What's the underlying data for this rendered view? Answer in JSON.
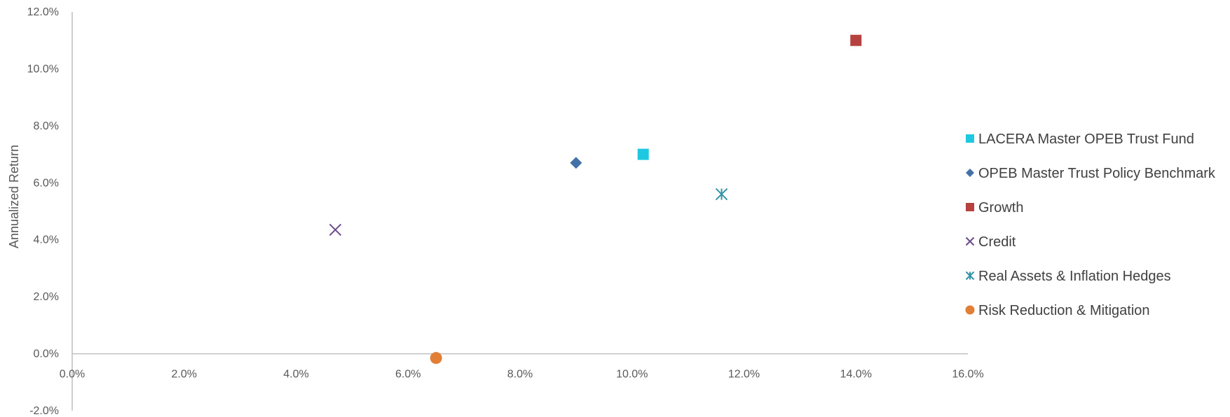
{
  "chart_data": {
    "type": "scatter",
    "title": "",
    "xlabel": "",
    "ylabel": "Annualized Return",
    "xlim": [
      0,
      16
    ],
    "ylim": [
      -2,
      12
    ],
    "x_ticks": [
      "0.0%",
      "2.0%",
      "4.0%",
      "6.0%",
      "8.0%",
      "10.0%",
      "12.0%",
      "14.0%",
      "16.0%"
    ],
    "y_ticks": [
      "-2.0%",
      "0.0%",
      "2.0%",
      "4.0%",
      "6.0%",
      "8.0%",
      "10.0%",
      "12.0%"
    ],
    "grid": false,
    "legend_position": "right",
    "series": [
      {
        "name": "LACERA Master OPEB Trust Fund",
        "x": 10.2,
        "y": 7.0,
        "marker": "square",
        "color": "#1EC8E0"
      },
      {
        "name": "OPEB Master Trust Policy Benchmark",
        "x": 9.0,
        "y": 6.7,
        "marker": "diamond",
        "color": "#4472A8"
      },
      {
        "name": "Growth",
        "x": 14.0,
        "y": 11.0,
        "marker": "square",
        "color": "#B5423F"
      },
      {
        "name": "Credit",
        "x": 4.7,
        "y": 4.35,
        "marker": "x",
        "color": "#6B4C8A"
      },
      {
        "name": "Real Assets & Inflation Hedges",
        "x": 11.6,
        "y": 5.6,
        "marker": "asterisk",
        "color": "#3293A8"
      },
      {
        "name": "Risk Reduction & Mitigation",
        "x": 6.5,
        "y": -0.15,
        "marker": "circle",
        "color": "#E07F35"
      }
    ]
  }
}
